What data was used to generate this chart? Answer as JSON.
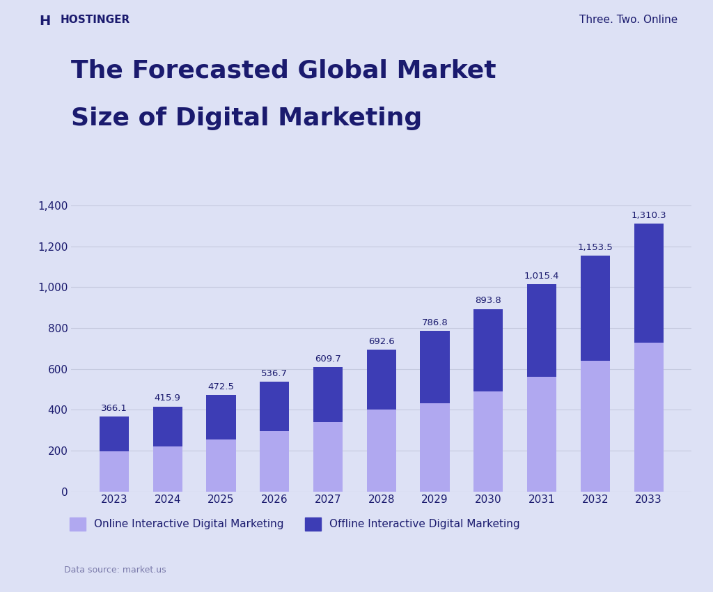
{
  "years": [
    "2023",
    "2024",
    "2025",
    "2026",
    "2027",
    "2028",
    "2029",
    "2030",
    "2031",
    "2032",
    "2033"
  ],
  "totals": [
    366.1,
    415.9,
    472.5,
    536.7,
    609.7,
    692.6,
    786.8,
    893.8,
    1015.4,
    1153.5,
    1310.3
  ],
  "online": [
    195,
    220,
    255,
    295,
    340,
    400,
    430,
    490,
    560,
    640,
    730
  ],
  "offline_color": "#3d3db5",
  "online_color": "#b0a8f0",
  "background_color": "#dde1f5",
  "text_color": "#1a1a6e",
  "label_color": "#3d3db5",
  "grid_color": "#c5cadf",
  "title_line1": "The Forecasted Global Market",
  "title_line2": "Size of Digital Marketing",
  "brand_name": "HOSTINGER",
  "tagline": "Three. Two. Online",
  "legend_online": "Online Interactive Digital Marketing",
  "legend_offline": "Offline Interactive Digital Marketing",
  "data_source": "Data source: market.us",
  "ylim": [
    0,
    1450
  ],
  "yticks": [
    0,
    200,
    400,
    600,
    800,
    1000,
    1200,
    1400
  ]
}
